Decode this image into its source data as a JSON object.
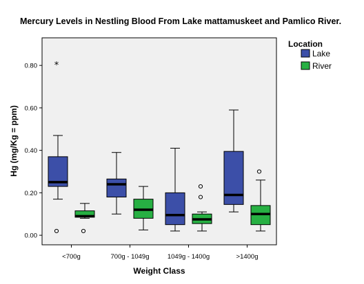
{
  "chart_data": {
    "type": "boxplot",
    "title": "Mercury Levels in Nestling Blood From Lake mattamuskeet and Pamlico River.",
    "xlabel": "Weight Class",
    "ylabel": "Hg (mg/Kg = ppm)",
    "categories": [
      "<700g",
      "700g - 1049g",
      "1049g - 1400g",
      ">1400g"
    ],
    "y_ticks": [
      {
        "value": 0.0,
        "label": "0.00"
      },
      {
        "value": 0.2,
        "label": "0.20"
      },
      {
        "value": 0.4,
        "label": "0.40"
      },
      {
        "value": 0.6,
        "label": "0.60"
      },
      {
        "value": 0.8,
        "label": "0.80"
      }
    ],
    "ylim": [
      -0.045,
      0.93
    ],
    "grid": false,
    "legend": {
      "title": "Location",
      "placement": "right"
    },
    "series": [
      {
        "name": "Lake",
        "color": "#3c4fa8",
        "boxes": [
          {
            "whisker_low": 0.17,
            "q1": 0.23,
            "median": 0.25,
            "q3": 0.37,
            "whisker_high": 0.47,
            "outliers": [
              {
                "value": 0.02,
                "marker": "circle"
              },
              {
                "value": 0.81,
                "marker": "star"
              }
            ]
          },
          {
            "whisker_low": 0.1,
            "q1": 0.18,
            "median": 0.24,
            "q3": 0.265,
            "whisker_high": 0.39,
            "outliers": []
          },
          {
            "whisker_low": 0.02,
            "q1": 0.05,
            "median": 0.095,
            "q3": 0.2,
            "whisker_high": 0.41,
            "outliers": []
          },
          {
            "whisker_low": 0.11,
            "q1": 0.145,
            "median": 0.19,
            "q3": 0.395,
            "whisker_high": 0.59,
            "outliers": []
          }
        ]
      },
      {
        "name": "River",
        "color": "#27b043",
        "boxes": [
          {
            "whisker_low": 0.08,
            "q1": 0.085,
            "median": 0.09,
            "q3": 0.115,
            "whisker_high": 0.15,
            "outliers": [
              {
                "value": 0.02,
                "marker": "circle"
              }
            ]
          },
          {
            "whisker_low": 0.025,
            "q1": 0.08,
            "median": 0.12,
            "q3": 0.17,
            "whisker_high": 0.23,
            "outliers": []
          },
          {
            "whisker_low": 0.02,
            "q1": 0.055,
            "median": 0.075,
            "q3": 0.1,
            "whisker_high": 0.11,
            "outliers": [
              {
                "value": 0.18,
                "marker": "circle"
              },
              {
                "value": 0.23,
                "marker": "circle"
              }
            ]
          },
          {
            "whisker_low": 0.02,
            "q1": 0.05,
            "median": 0.1,
            "q3": 0.14,
            "whisker_high": 0.26,
            "outliers": [
              {
                "value": 0.3,
                "marker": "circle"
              }
            ]
          }
        ]
      }
    ]
  }
}
